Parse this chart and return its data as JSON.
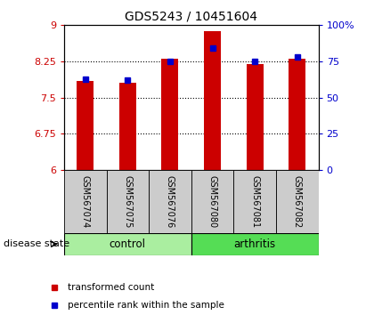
{
  "title": "GDS5243 / 10451604",
  "samples": [
    "GSM567074",
    "GSM567075",
    "GSM567076",
    "GSM567080",
    "GSM567081",
    "GSM567082"
  ],
  "transformed_count": [
    7.85,
    7.8,
    8.3,
    8.87,
    8.2,
    8.3
  ],
  "percentile_rank": [
    63,
    62,
    75,
    84,
    75,
    78
  ],
  "bar_base": 6.0,
  "ylim_left": [
    6,
    9
  ],
  "ylim_right": [
    0,
    100
  ],
  "yticks_left": [
    6,
    6.75,
    7.5,
    8.25,
    9
  ],
  "ytick_labels_left": [
    "6",
    "6.75",
    "7.5",
    "8.25",
    "9"
  ],
  "yticks_right": [
    0,
    25,
    50,
    75,
    100
  ],
  "ytick_labels_right": [
    "0",
    "25",
    "50",
    "75",
    "100%"
  ],
  "bar_color": "#cc0000",
  "marker_color": "#0000cc",
  "groups": [
    {
      "label": "control",
      "indices": [
        0,
        1,
        2
      ],
      "color": "#aaeea0"
    },
    {
      "label": "arthritis",
      "indices": [
        3,
        4,
        5
      ],
      "color": "#55dd55"
    }
  ],
  "group_label_prefix": "disease state",
  "bar_width": 0.4,
  "tick_area_bg": "#cccccc",
  "legend_items": [
    {
      "label": "transformed count",
      "color": "#cc0000",
      "marker": "s"
    },
    {
      "label": "percentile rank within the sample",
      "color": "#0000cc",
      "marker": "s"
    }
  ]
}
